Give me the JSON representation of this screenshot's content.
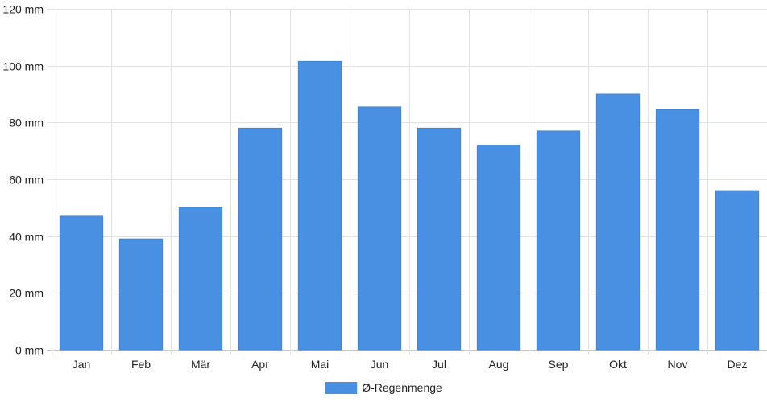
{
  "chart_data": {
    "type": "bar",
    "categories": [
      "Jan",
      "Feb",
      "Mär",
      "Apr",
      "Mai",
      "Jun",
      "Jul",
      "Aug",
      "Sep",
      "Okt",
      "Nov",
      "Dez"
    ],
    "series": [
      {
        "name": "Ø-Regenmenge",
        "values": [
          47,
          39,
          50,
          78,
          101.5,
          85.5,
          78,
          72,
          77,
          90,
          84.5,
          56
        ],
        "color": "#4a90e2"
      }
    ],
    "ylim": [
      0,
      120
    ],
    "ytick_step": 20,
    "ytick_labels": [
      "0 mm",
      "20 mm",
      "40 mm",
      "60 mm",
      "80 mm",
      "100 mm",
      "120 mm"
    ],
    "grid": true,
    "legend_position": "bottom-center"
  }
}
